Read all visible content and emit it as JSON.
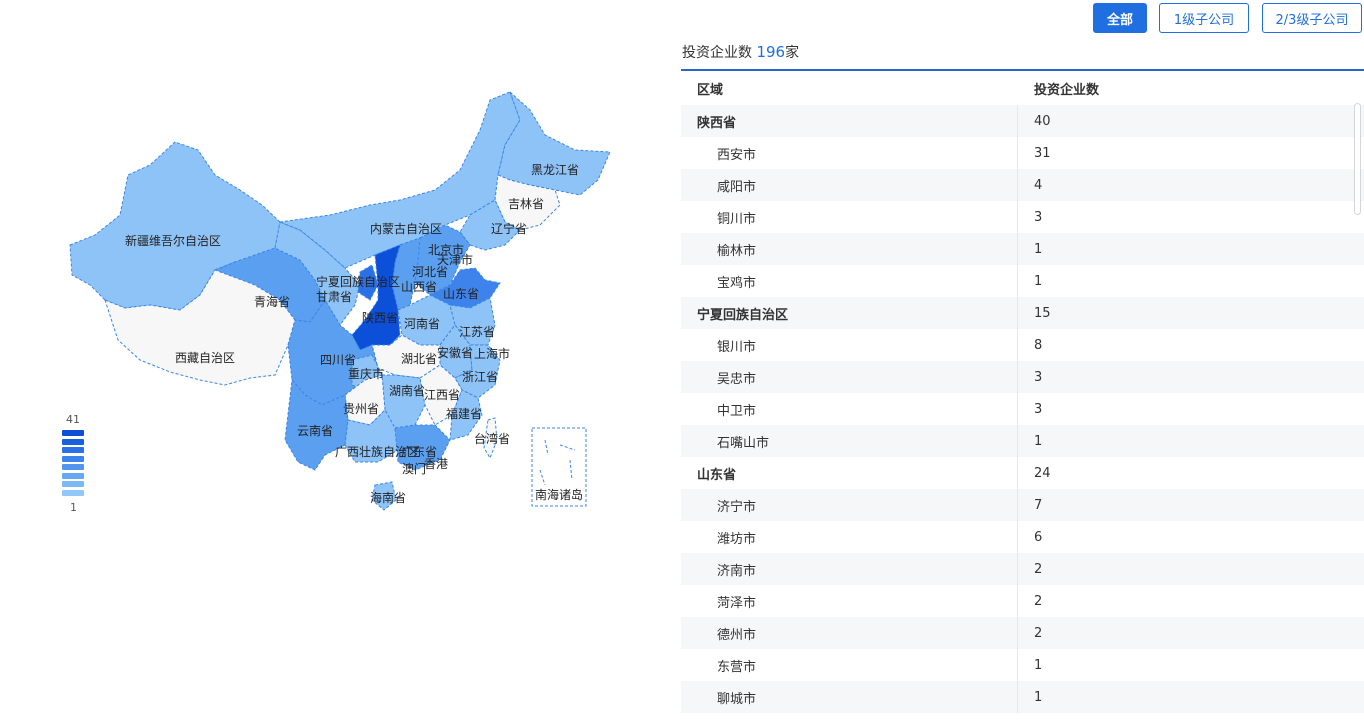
{
  "filters": [
    {
      "label": "全部",
      "active": true
    },
    {
      "label": "1级子公司",
      "active": false
    },
    {
      "label": "2/3级子公司",
      "active": false
    }
  ],
  "summary": {
    "prefix": "投资企业数",
    "count": "196",
    "suffix": "家"
  },
  "table": {
    "headers": [
      "区域",
      "投资企业数"
    ],
    "rows": [
      {
        "name": "陕西省",
        "value": "40",
        "level": "parent"
      },
      {
        "name": "西安市",
        "value": "31",
        "level": "child"
      },
      {
        "name": "咸阳市",
        "value": "4",
        "level": "child"
      },
      {
        "name": "铜川市",
        "value": "3",
        "level": "child"
      },
      {
        "name": "榆林市",
        "value": "1",
        "level": "child"
      },
      {
        "name": "宝鸡市",
        "value": "1",
        "level": "child"
      },
      {
        "name": "宁夏回族自治区",
        "value": "15",
        "level": "parent"
      },
      {
        "name": "银川市",
        "value": "8",
        "level": "child"
      },
      {
        "name": "吴忠市",
        "value": "3",
        "level": "child"
      },
      {
        "name": "中卫市",
        "value": "3",
        "level": "child"
      },
      {
        "name": "石嘴山市",
        "value": "1",
        "level": "child"
      },
      {
        "name": "山东省",
        "value": "24",
        "level": "parent"
      },
      {
        "name": "济宁市",
        "value": "7",
        "level": "child"
      },
      {
        "name": "潍坊市",
        "value": "6",
        "level": "child"
      },
      {
        "name": "济南市",
        "value": "2",
        "level": "child"
      },
      {
        "name": "菏泽市",
        "value": "2",
        "level": "child"
      },
      {
        "name": "德州市",
        "value": "2",
        "level": "child"
      },
      {
        "name": "东营市",
        "value": "1",
        "level": "child"
      },
      {
        "name": "聊城市",
        "value": "1",
        "level": "child"
      }
    ]
  },
  "map": {
    "legend": {
      "max": "41",
      "min": "1",
      "colors": [
        "#0b4fd6",
        "#1a5fe0",
        "#2c70e6",
        "#3e82eb",
        "#5295ef",
        "#67a7f3",
        "#7cb8f6",
        "#92c8f9"
      ]
    },
    "colors": {
      "none": "#f5f5f5",
      "light": "#8ec3f8",
      "mid": "#5a9ff0",
      "dark": "#0c4fd8",
      "border": "#3a86e8"
    },
    "labels": [
      {
        "name": "新疆维吾尔自治区"
      },
      {
        "name": "西藏自治区"
      },
      {
        "name": "青海省"
      },
      {
        "name": "甘肃省"
      },
      {
        "name": "内蒙古自治区"
      },
      {
        "name": "黑龙江省"
      },
      {
        "name": "吉林省"
      },
      {
        "name": "辽宁省"
      },
      {
        "name": "北京市"
      },
      {
        "name": "天津市"
      },
      {
        "name": "河北省"
      },
      {
        "name": "宁夏回族自治区"
      },
      {
        "name": "山西省"
      },
      {
        "name": "山东省"
      },
      {
        "name": "陕西省"
      },
      {
        "name": "河南省"
      },
      {
        "name": "江苏省"
      },
      {
        "name": "四川省"
      },
      {
        "name": "湖北省"
      },
      {
        "name": "安徽省"
      },
      {
        "name": "上海市"
      },
      {
        "name": "重庆市"
      },
      {
        "name": "浙江省"
      },
      {
        "name": "湖南省"
      },
      {
        "name": "江西省"
      },
      {
        "name": "贵州省"
      },
      {
        "name": "福建省"
      },
      {
        "name": "云南省"
      },
      {
        "name": "台湾省"
      },
      {
        "name": "广西壮族自治区"
      },
      {
        "name": "广东省"
      },
      {
        "name": "澳门"
      },
      {
        "name": "香港"
      },
      {
        "name": "海南省"
      },
      {
        "name": "南海诸岛"
      }
    ]
  }
}
